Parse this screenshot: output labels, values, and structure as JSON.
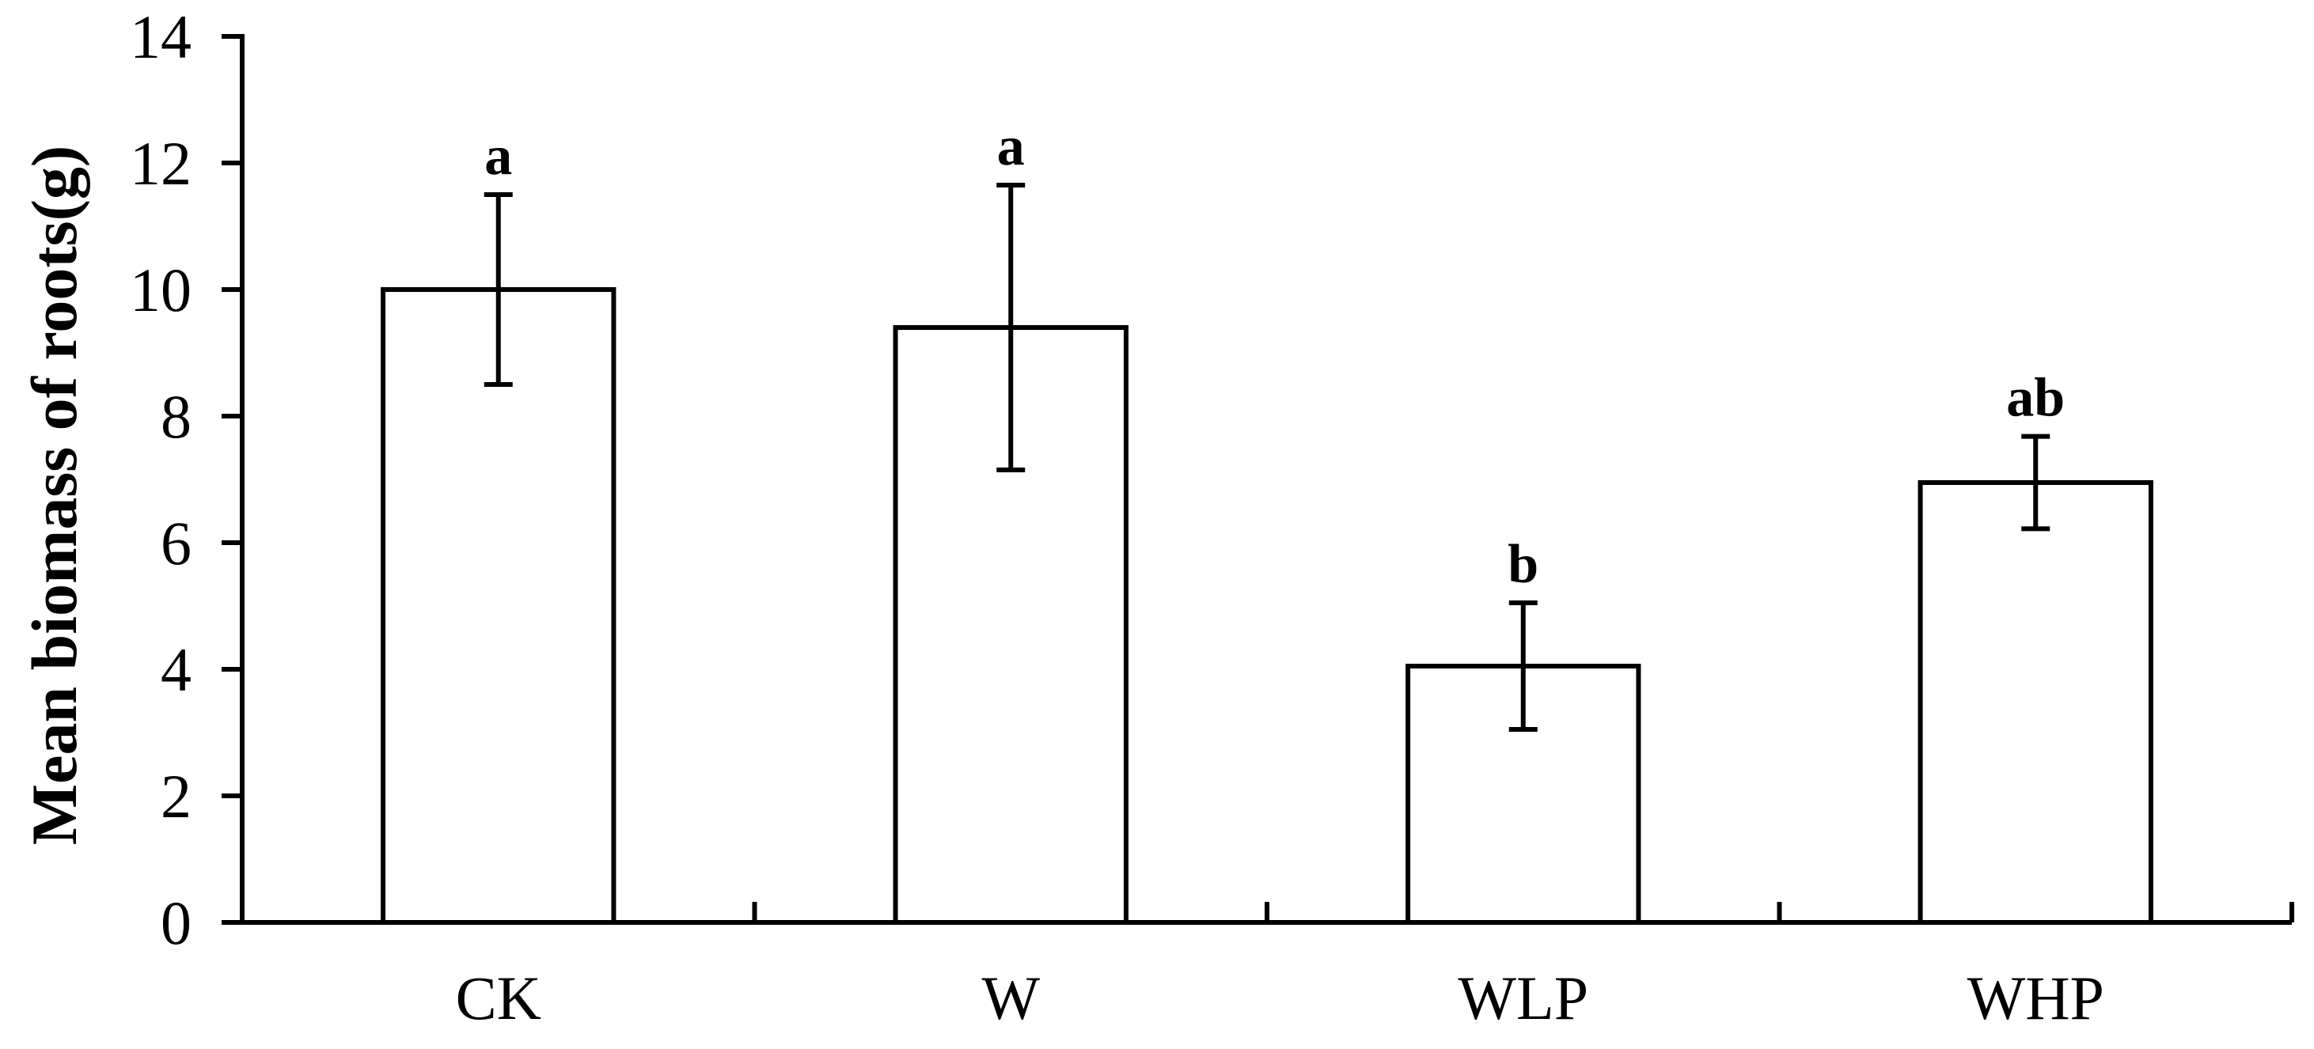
{
  "chart_data": {
    "type": "bar",
    "title": "",
    "xlabel": "",
    "ylabel": "Mean biomass of roots(g)",
    "categories": [
      "CK",
      "W",
      "WLP",
      "WHP"
    ],
    "values": [
      10.0,
      9.4,
      4.05,
      6.95
    ],
    "error": [
      1.5,
      2.25,
      1.0,
      0.73
    ],
    "significance": [
      "a",
      "a",
      "b",
      "ab"
    ],
    "ylim": [
      0,
      14
    ],
    "yticks": [
      0,
      2,
      4,
      6,
      8,
      10,
      12,
      14
    ],
    "ytick_labels": [
      "0",
      "2",
      "4",
      "6",
      "8",
      "10",
      "12",
      "14"
    ],
    "grid": false,
    "legend": "none",
    "colors": {
      "bar_fill": "#ffffff",
      "bar_stroke": "#000000",
      "axis": "#000000"
    }
  }
}
